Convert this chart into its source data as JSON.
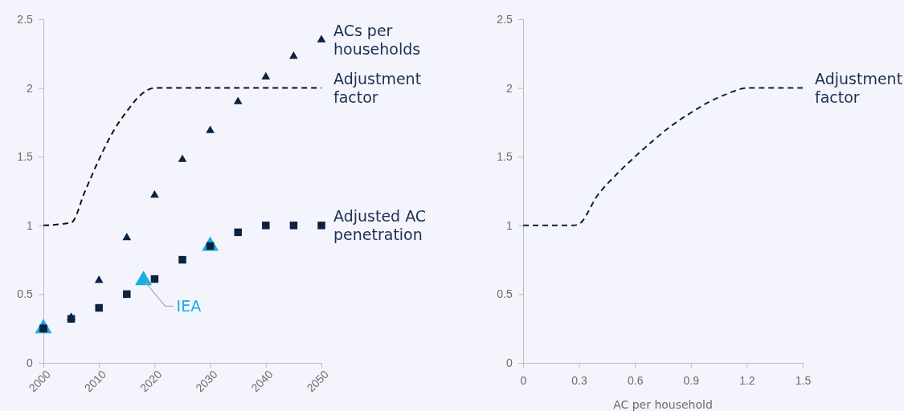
{
  "chart_data": [
    {
      "type": "line",
      "x": [
        2000,
        2005,
        2010,
        2015,
        2020,
        2025,
        2030,
        2035,
        2040,
        2045,
        2050
      ],
      "xlim": [
        2000,
        2050
      ],
      "xticks": [
        2000,
        2010,
        2020,
        2030,
        2040,
        2050
      ],
      "ylim": [
        0,
        2.5
      ],
      "yticks": [
        0,
        0.5,
        1,
        1.5,
        2,
        2.5
      ],
      "series": [
        {
          "type": "scatter",
          "color": "#1aafe0",
          "marker": "triangle",
          "x": [
            2000,
            2018,
            2030
          ],
          "values": [
            0.25,
            0.6,
            0.85
          ]
        },
        {
          "name": "Adjusted AC penetration",
          "type": "scatter",
          "color": "#0d2240",
          "marker": "square",
          "values": [
            0.25,
            0.32,
            0.4,
            0.5,
            0.61,
            0.75,
            0.85,
            0.95,
            1.0,
            1.0,
            1.0
          ]
        },
        {
          "name": "ACs per households",
          "type": "scatter",
          "color": "#0d2240",
          "marker": "triangle",
          "values": [
            0.25,
            0.33,
            0.6,
            0.91,
            1.22,
            1.48,
            1.69,
            1.9,
            2.08,
            2.23,
            2.35
          ]
        },
        {
          "name": "Adjustment factor",
          "color": "#111111",
          "marker": "none",
          "line_style": "dashed",
          "x": [
            2000,
            2005,
            2007.5,
            2010,
            2012.5,
            2015,
            2017.5,
            2020,
            2050
          ],
          "values": [
            1.0,
            1.02,
            1.25,
            1.48,
            1.68,
            1.83,
            1.95,
            2.0,
            2.0
          ]
        }
      ],
      "annotations": [
        {
          "text": "IEA",
          "x": 2018,
          "y": 0.6
        }
      ]
    },
    {
      "type": "line",
      "xlabel": "AC per household",
      "x": [
        0,
        0.27,
        0.3,
        0.4,
        0.5,
        0.6,
        0.7,
        0.8,
        0.9,
        1.0,
        1.1,
        1.2,
        1.5
      ],
      "xlim": [
        0,
        1.5
      ],
      "xticks": [
        0,
        0.3,
        0.6,
        0.9,
        1.2,
        1.5
      ],
      "ylim": [
        0,
        2.5
      ],
      "yticks": [
        0,
        0.5,
        1,
        1.5,
        2,
        2.5
      ],
      "series": [
        {
          "name": "Adjustment factor",
          "color": "#0d2240",
          "marker": "none",
          "line_style": "dashed",
          "values": [
            1.0,
            1.0,
            1.01,
            1.22,
            1.37,
            1.5,
            1.62,
            1.73,
            1.82,
            1.9,
            1.96,
            2.0,
            2.0
          ]
        }
      ]
    }
  ]
}
